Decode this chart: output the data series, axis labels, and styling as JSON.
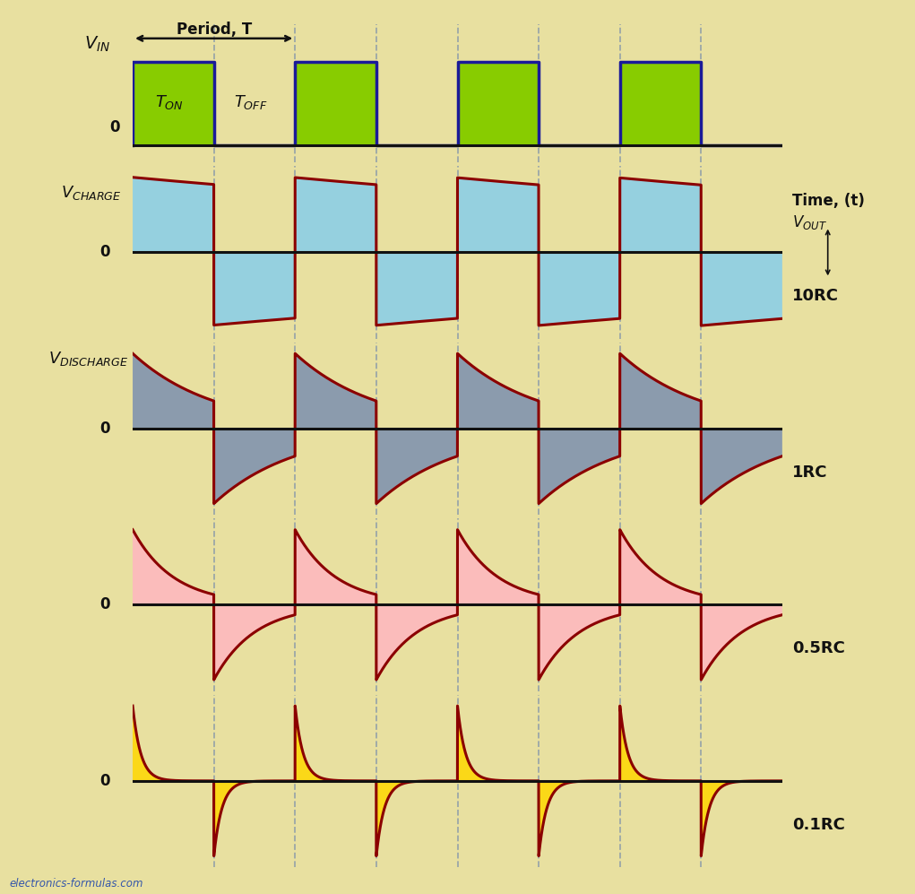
{
  "bg_color": "#E8E0A0",
  "square_wave_color": "#88CC00",
  "square_wave_edge": "#1A1A99",
  "waveform_color": "#8B0000",
  "fill_10rc": "#87CEEB",
  "fill_1rc": "#7B8FB0",
  "fill_05rc": "#FFB6C1",
  "fill_01rc": "#FFD700",
  "axis_color": "#111111",
  "dashed_color": "#8899AA",
  "text_color": "#111111",
  "label_color": "#0000CC",
  "period": 2.0,
  "duty": 0.5,
  "n_cycles": 4,
  "T_on": 1.0,
  "T_off": 1.0,
  "rc_configs": [
    {
      "rc": 10.0,
      "label": "10RC",
      "fill": "#87CEEB"
    },
    {
      "rc": 1.0,
      "label": "1RC",
      "fill": "#7B8FB0"
    },
    {
      "rc": 0.5,
      "label": "0.5RC",
      "fill": "#FFB6C1"
    },
    {
      "rc": 0.1,
      "label": "0.1RC",
      "fill": "#FFD700"
    }
  ],
  "time_label": "Time, (t)",
  "watermark": "electronics-formulas.com"
}
